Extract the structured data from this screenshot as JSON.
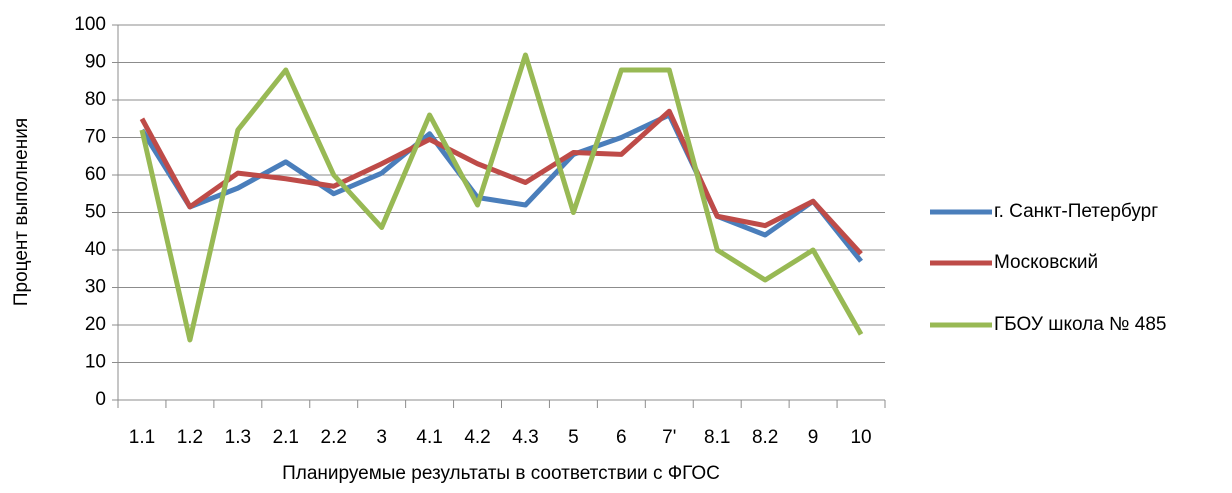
{
  "chart_data": {
    "type": "line",
    "x_label": "Планируемые результаты в соответствии с ФГОС",
    "y_label": "Процент выполнения",
    "categories": [
      "1.1",
      "1.2",
      "1.3",
      "2.1",
      "2.2",
      "3",
      "4.1",
      "4.2",
      "4.3",
      "5",
      "6",
      "7'",
      "8.1",
      "8.2",
      "9",
      "10"
    ],
    "series": [
      {
        "name": "г. Санкт-Петербург",
        "color": "#4a7ebb",
        "values": [
          72,
          51.5,
          56.5,
          63.5,
          55,
          60.5,
          71,
          54,
          52,
          65.5,
          70,
          76,
          49,
          44,
          53,
          37
        ]
      },
      {
        "name": "Московский",
        "color": "#be4b48",
        "values": [
          75,
          51.5,
          60.5,
          59,
          57,
          63,
          69.5,
          63,
          58,
          66,
          65.5,
          77,
          49,
          46.5,
          53,
          39
        ]
      },
      {
        "name": "ГБОУ школа № 485",
        "color": "#98b954",
        "values": [
          72,
          16,
          72,
          88,
          60,
          46,
          76,
          52,
          92,
          50,
          88,
          88,
          40,
          32,
          40,
          17.5
        ]
      }
    ],
    "ylim": [
      0,
      100
    ],
    "yticks": [
      0,
      10,
      20,
      30,
      40,
      50,
      60,
      70,
      80,
      90,
      100
    ],
    "grid": true,
    "legend": "right"
  }
}
